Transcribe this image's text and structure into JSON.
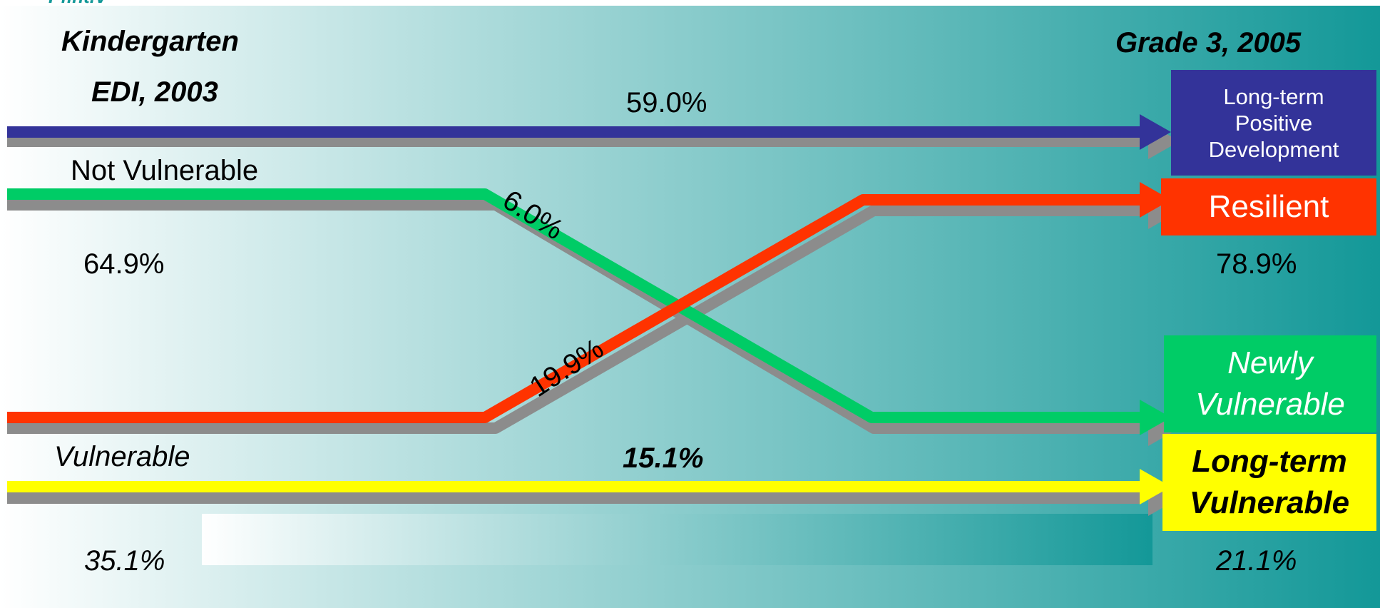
{
  "corner_text": "Pfint.V",
  "left_header": {
    "line1": "Kindergarten",
    "line2": "EDI, 2003"
  },
  "right_header": "Grade 3, 2005",
  "groups": {
    "not_vulnerable": {
      "label": "Not Vulnerable",
      "percent": "64.9%"
    },
    "vulnerable": {
      "label": "Vulnerable",
      "percent": "35.1%"
    }
  },
  "flows": [
    {
      "id": "positive",
      "value": "59.0%",
      "color": "#333399"
    },
    {
      "id": "newly_vulnerable",
      "value": "6.0%",
      "color": "#00CC66"
    },
    {
      "id": "resilient",
      "value": "19.9%",
      "color": "#FF3300"
    },
    {
      "id": "long_term_vulnerable",
      "value": "15.1%",
      "color": "#FFFF00"
    }
  ],
  "outcomes": {
    "positive": {
      "lines": [
        "Long-term",
        "Positive",
        "Development"
      ],
      "color": "#333399",
      "text_color": "#FFFFFF"
    },
    "resilient": {
      "label": "Resilient",
      "color": "#FF3300",
      "text_color": "#FFFFFF"
    },
    "newly_vulnerable": {
      "lines": [
        "Newly",
        "Vulnerable"
      ],
      "color": "#00CC66",
      "text_color": "#FFFFFF"
    },
    "long_term_vulnerable": {
      "lines": [
        "Long-term",
        "Vulnerable"
      ],
      "color": "#FFFF00",
      "text_color": "#000000"
    }
  },
  "right_percents": {
    "top": "78.9%",
    "bottom": "21.1%"
  },
  "colors": {
    "background_left": "#FFFFFF",
    "background_right": "#139898",
    "shadow": "#8C8C8C"
  }
}
